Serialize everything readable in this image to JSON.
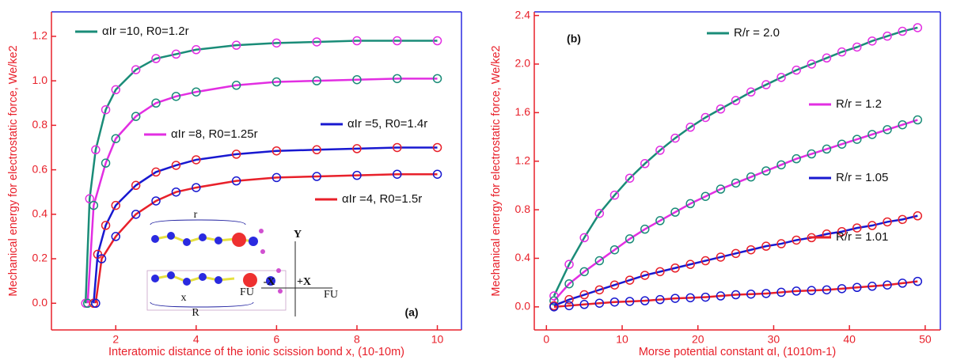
{
  "chart_data": [
    {
      "type": "line",
      "x_label": "Interatomic distance of the ionic scission bond x, (10-10m)",
      "y_label": "Mechanical energy for electrostatic force, We/ke2",
      "xlim": [
        0.4,
        10.6
      ],
      "ylim": [
        -0.12,
        1.31
      ],
      "xticks": [
        2,
        4,
        6,
        8,
        10
      ],
      "yticks": [
        {
          "value": 0,
          "label": "0.0"
        },
        0.2,
        0.4,
        0.6,
        0.8,
        {
          "value": 1,
          "label": "1.0"
        },
        1.2
      ],
      "annotations": [
        "(a)",
        "r",
        "x",
        "R",
        "FU",
        "-X",
        "+X",
        "FU",
        "Y"
      ],
      "series": [
        {
          "name": "αIr =10, R0=1.2r",
          "color": "#1a8c78",
          "marker_color": "#e22ee2",
          "x": [
            1.25,
            1.35,
            1.5,
            1.75,
            2,
            2.5,
            3,
            3.5,
            4,
            5,
            6,
            7,
            8,
            9,
            10
          ],
          "values": [
            0,
            0.47,
            0.69,
            0.87,
            0.96,
            1.05,
            1.1,
            1.12,
            1.14,
            1.16,
            1.17,
            1.175,
            1.18,
            1.18,
            1.18
          ]
        },
        {
          "name": "αIr =8, R0=1.25r",
          "color": "#e22ee2",
          "marker_color": "#1a8c78",
          "x": [
            1.3,
            1.45,
            1.75,
            2,
            2.5,
            3,
            3.5,
            4,
            5,
            6,
            7,
            8,
            9,
            10
          ],
          "values": [
            0,
            0.44,
            0.63,
            0.74,
            0.84,
            0.9,
            0.93,
            0.95,
            0.98,
            0.995,
            1,
            1.005,
            1.01,
            1.01
          ]
        },
        {
          "name": "αIr =5, R0=1.4r",
          "color": "#1818d0",
          "marker_color": "#e8202a",
          "x": [
            1.45,
            1.55,
            1.75,
            2,
            2.5,
            3,
            3.5,
            4,
            5,
            6,
            7,
            8,
            9,
            10
          ],
          "values": [
            0,
            0.22,
            0.35,
            0.44,
            0.53,
            0.59,
            0.62,
            0.645,
            0.67,
            0.685,
            0.69,
            0.695,
            0.7,
            0.7
          ]
        },
        {
          "name": "αIr =4, R0=1.5r",
          "color": "#e8202a",
          "marker_color": "#1818d0",
          "x": [
            1.5,
            1.65,
            2,
            2.5,
            3,
            3.5,
            4,
            5,
            6,
            7,
            8,
            9,
            10
          ],
          "values": [
            0,
            0.2,
            0.3,
            0.4,
            0.46,
            0.5,
            0.52,
            0.55,
            0.565,
            0.57,
            0.575,
            0.58,
            0.58
          ]
        }
      ]
    },
    {
      "type": "line",
      "x_label": "Morse potential constant αI, (1010m-1)",
      "y_label": "Mechanical energy for electrostatic force, We/ke2",
      "xlim": [
        -1.6,
        52
      ],
      "ylim": [
        -0.19,
        2.43
      ],
      "xticks": [
        0,
        10,
        20,
        30,
        40,
        50
      ],
      "yticks": [
        {
          "value": 0,
          "label": "0.0"
        },
        0.4,
        0.8,
        1.2,
        1.6,
        {
          "value": 2,
          "label": "2.0"
        },
        2.4
      ],
      "annotations": [
        "(b)"
      ],
      "x": [
        1,
        3,
        5,
        7,
        9,
        11,
        13,
        15,
        17,
        19,
        21,
        23,
        25,
        27,
        29,
        31,
        33,
        35,
        37,
        39,
        41,
        43,
        45,
        47,
        49
      ],
      "series": [
        {
          "name": "R/r = 2.0",
          "color": "#1a8c78",
          "marker_color": "#e22ee2",
          "values": [
            0.09,
            0.35,
            0.57,
            0.77,
            0.92,
            1.06,
            1.18,
            1.29,
            1.39,
            1.48,
            1.56,
            1.63,
            1.7,
            1.77,
            1.83,
            1.89,
            1.95,
            2,
            2.05,
            2.1,
            2.14,
            2.19,
            2.23,
            2.27,
            2.3
          ]
        },
        {
          "name": "R/r = 1.2",
          "color": "#e22ee2",
          "marker_color": "#1a8c78",
          "values": [
            0.05,
            0.19,
            0.29,
            0.38,
            0.47,
            0.56,
            0.64,
            0.71,
            0.78,
            0.85,
            0.91,
            0.97,
            1.02,
            1.07,
            1.12,
            1.17,
            1.22,
            1.26,
            1.3,
            1.34,
            1.38,
            1.42,
            1.46,
            1.5,
            1.54
          ]
        },
        {
          "name": "R/r = 1.05",
          "color": "#1818d0",
          "marker_color": "#e8202a",
          "values": [
            0.01,
            0.06,
            0.1,
            0.14,
            0.18,
            0.22,
            0.26,
            0.29,
            0.32,
            0.35,
            0.38,
            0.41,
            0.44,
            0.47,
            0.5,
            0.52,
            0.55,
            0.57,
            0.6,
            0.62,
            0.65,
            0.67,
            0.7,
            0.72,
            0.75
          ]
        },
        {
          "name": "R/r = 1.01",
          "color": "#e8202a",
          "marker_color": "#1818d0",
          "values": [
            0,
            0.01,
            0.02,
            0.03,
            0.04,
            0.045,
            0.05,
            0.06,
            0.07,
            0.075,
            0.08,
            0.09,
            0.1,
            0.105,
            0.11,
            0.12,
            0.13,
            0.135,
            0.14,
            0.15,
            0.16,
            0.17,
            0.18,
            0.195,
            0.21
          ]
        }
      ]
    }
  ]
}
